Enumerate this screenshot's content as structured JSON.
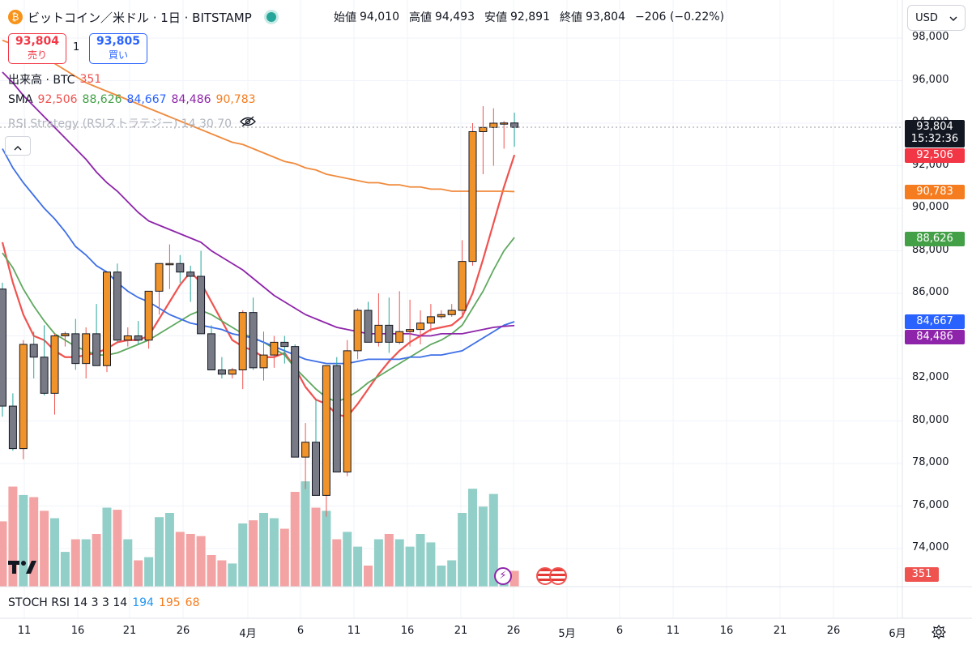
{
  "header": {
    "symbol_title": "ビットコイン／米ドル · 1日 · BITSTAMP",
    "ohlc": {
      "open_label": "始値",
      "open": "94,010",
      "high_label": "高値",
      "high": "94,493",
      "low_label": "安値",
      "low": "92,891",
      "close_label": "終値",
      "close": "93,804",
      "change": "−206 (−0.22%)"
    }
  },
  "trade": {
    "sell_price": "93,804",
    "sell_label": "売り",
    "spread": "1",
    "buy_price": "93,805",
    "buy_label": "買い"
  },
  "indicators": {
    "volume_label": "出来高 · BTC",
    "volume_value": "351",
    "sma_label": "SMA",
    "sma_values": [
      "92,506",
      "88,626",
      "84,667",
      "84,486",
      "90,783"
    ],
    "rsi_label": "RSI Strategy (RSIストラテジー) 14 30 70"
  },
  "currency_button": "USD",
  "price_axis": {
    "ticks": [
      "98,000",
      "96,000",
      "94,000",
      "92,000",
      "90,000",
      "88,000",
      "86,000",
      "84,000",
      "82,000",
      "80,000",
      "78,000",
      "76,000",
      "74,000"
    ],
    "current_price": "93,804",
    "countdown": "15:32:36",
    "badges": [
      {
        "value": "92,506",
        "color": "#f23645"
      },
      {
        "value": "90,783",
        "color": "#f57c1f"
      },
      {
        "value": "88,626",
        "color": "#43a047"
      },
      {
        "value": "84,667",
        "color": "#2962ff"
      },
      {
        "value": "84,486",
        "color": "#8e24aa"
      }
    ],
    "volume_badge": "351"
  },
  "time_axis": {
    "labels": [
      "11",
      "16",
      "21",
      "26",
      "4月",
      "6",
      "11",
      "16",
      "21",
      "26",
      "5月",
      "6",
      "11",
      "16",
      "21",
      "26",
      "6月"
    ]
  },
  "stoch": {
    "label": "STOCH RSI 14 3 3 14",
    "values": [
      "194",
      "195",
      "68"
    ]
  },
  "colors": {
    "up_body": "#f0932b",
    "down_body": "#787b86",
    "sma_colors": [
      "#ef5350",
      "#5fa85f",
      "#3d6fe6",
      "#8e24aa",
      "#f08a3c"
    ],
    "volume_up": "#92cfc8",
    "volume_down": "#f3a3a3"
  },
  "chart_data": {
    "type": "candlestick",
    "x": [
      "3/7",
      "3/8",
      "3/9",
      "3/10",
      "3/11",
      "3/12",
      "3/13",
      "3/14",
      "3/15",
      "3/16",
      "3/17",
      "3/18",
      "3/19",
      "3/20",
      "3/21",
      "3/22",
      "3/23",
      "3/24",
      "3/25",
      "3/26",
      "3/27",
      "3/28",
      "3/29",
      "3/30",
      "3/31",
      "4/1",
      "4/2",
      "4/3",
      "4/4",
      "4/5",
      "4/6",
      "4/7",
      "4/8",
      "4/9",
      "4/10",
      "4/11",
      "4/12",
      "4/13",
      "4/14",
      "4/15",
      "4/16",
      "4/17",
      "4/18",
      "4/19",
      "4/20",
      "4/21",
      "4/22",
      "4/23",
      "4/24",
      "4/25"
    ],
    "ohlc": [
      [
        86200,
        86500,
        80200,
        80700
      ],
      [
        80700,
        81300,
        78600,
        78700
      ],
      [
        78700,
        83800,
        78200,
        83600
      ],
      [
        83600,
        84200,
        82000,
        83000
      ],
      [
        83000,
        84500,
        81200,
        81300
      ],
      [
        81300,
        84100,
        80300,
        84000
      ],
      [
        84000,
        84200,
        83500,
        84100
      ],
      [
        84100,
        84800,
        82400,
        82700
      ],
      [
        82700,
        84400,
        82000,
        84100
      ],
      [
        84100,
        85500,
        82600,
        82600
      ],
      [
        82600,
        87000,
        82300,
        87000
      ],
      [
        87000,
        87400,
        83700,
        83800
      ],
      [
        83800,
        84400,
        83500,
        84000
      ],
      [
        84000,
        84700,
        83600,
        83800
      ],
      [
        83800,
        86000,
        83400,
        86100
      ],
      [
        86100,
        87400,
        85000,
        87400
      ],
      [
        87400,
        88300,
        86200,
        87400
      ],
      [
        87400,
        87800,
        86500,
        87000
      ],
      [
        87000,
        87300,
        85600,
        86800
      ],
      [
        86800,
        88000,
        84100,
        84100
      ],
      [
        84100,
        84500,
        82400,
        82400
      ],
      [
        82400,
        83000,
        82000,
        82200
      ],
      [
        82200,
        82500,
        82000,
        82400
      ],
      [
        82400,
        85200,
        81500,
        85100
      ],
      [
        85100,
        85800,
        82400,
        82500
      ],
      [
        82500,
        84200,
        81900,
        83100
      ],
      [
        83100,
        84000,
        82500,
        83700
      ],
      [
        83700,
        84000,
        82700,
        83500
      ],
      [
        83500,
        83600,
        78300,
        78300
      ],
      [
        78300,
        79900,
        76800,
        79000
      ],
      [
        79000,
        81000,
        76500,
        76500
      ],
      [
        76500,
        82500,
        75500,
        82600
      ],
      [
        82600,
        83000,
        77600,
        77600
      ],
      [
        77600,
        83800,
        77400,
        83300
      ],
      [
        83300,
        85300,
        82900,
        85200
      ],
      [
        85200,
        85600,
        83700,
        83700
      ],
      [
        83700,
        86000,
        83500,
        84500
      ],
      [
        84500,
        85800,
        83200,
        83700
      ],
      [
        83700,
        86100,
        83600,
        84200
      ],
      [
        84200,
        85700,
        83500,
        84300
      ],
      [
        84300,
        85200,
        83600,
        84600
      ],
      [
        84600,
        85500,
        84200,
        84900
      ],
      [
        84900,
        85200,
        84800,
        85000
      ],
      [
        85000,
        85500,
        84900,
        85200
      ],
      [
        85200,
        88500,
        85000,
        87500
      ],
      [
        87500,
        94000,
        87300,
        93600
      ],
      [
        93600,
        94800,
        91600,
        93800
      ],
      [
        93800,
        94700,
        92000,
        94000
      ],
      [
        94000,
        94100,
        92800,
        94010
      ],
      [
        94010,
        94493,
        92891,
        93804
      ]
    ],
    "volume_relative": [
      0.62,
      0.95,
      0.87,
      0.85,
      0.72,
      0.65,
      0.33,
      0.45,
      0.45,
      0.5,
      0.75,
      0.73,
      0.45,
      0.25,
      0.28,
      0.66,
      0.7,
      0.52,
      0.5,
      0.48,
      0.3,
      0.25,
      0.22,
      0.6,
      0.63,
      0.7,
      0.65,
      0.55,
      0.9,
      1.0,
      0.75,
      0.72,
      0.45,
      0.52,
      0.38,
      0.2,
      0.45,
      0.5,
      0.45,
      0.38,
      0.5,
      0.42,
      0.2,
      0.25,
      0.7,
      0.93,
      0.76,
      0.88,
      0.15,
      0.15
    ],
    "sma_series": [
      {
        "period": "fast",
        "values": [
          88400,
          86500,
          85000,
          84000,
          83800,
          83300,
          83000,
          83000,
          83100,
          83200,
          83400,
          83700,
          83800,
          83800,
          84000,
          84800,
          85600,
          86400,
          87000,
          86500,
          85600,
          84700,
          83800,
          83500,
          83300,
          83000,
          83000,
          83200,
          82500,
          81600,
          81000,
          80800,
          80300,
          80200,
          80800,
          81500,
          82200,
          82800,
          83300,
          83700,
          84000,
          84300,
          84400,
          84500,
          84900,
          86000,
          87600,
          89300,
          91000,
          92506
        ]
      },
      {
        "period": "medium",
        "values": [
          87900,
          87200,
          86200,
          85400,
          84700,
          84100,
          83800,
          83500,
          83300,
          83100,
          83100,
          83200,
          83400,
          83600,
          83800,
          84100,
          84400,
          84700,
          85000,
          85200,
          85000,
          84700,
          84400,
          84100,
          83900,
          83700,
          83400,
          83100,
          82500,
          82000,
          81500,
          81100,
          80900,
          81100,
          81400,
          81800,
          82100,
          82400,
          82700,
          83000,
          83300,
          83600,
          83800,
          84100,
          84500,
          85300,
          86100,
          87100,
          88000,
          88626
        ]
      },
      {
        "period": "slow",
        "values": [
          92800,
          91900,
          91200,
          90600,
          90000,
          89500,
          88900,
          88200,
          87800,
          87300,
          87000,
          86500,
          86100,
          85800,
          85600,
          85300,
          85000,
          84800,
          84600,
          84500,
          84400,
          84300,
          84100,
          84000,
          83900,
          83700,
          83500,
          83300,
          83100,
          82900,
          82800,
          82700,
          82700,
          82700,
          82800,
          82900,
          82900,
          82900,
          82900,
          83000,
          83000,
          83100,
          83100,
          83200,
          83300,
          83600,
          83900,
          84200,
          84500,
          84667
        ]
      },
      {
        "period": "slower",
        "values": [
          96400,
          95900,
          95300,
          94800,
          94300,
          93800,
          93300,
          92800,
          92300,
          91700,
          91200,
          90800,
          90300,
          89800,
          89400,
          89200,
          89000,
          88800,
          88600,
          88400,
          88000,
          87700,
          87400,
          87100,
          86700,
          86300,
          85900,
          85600,
          85300,
          85000,
          84800,
          84600,
          84400,
          84300,
          84200,
          84100,
          84100,
          84100,
          84100,
          84100,
          84000,
          84000,
          84100,
          84100,
          84100,
          84200,
          84300,
          84400,
          84450,
          84486
        ]
      },
      {
        "period": "longest",
        "values": [
          97900,
          97700,
          97500,
          97300,
          97100,
          96800,
          96500,
          96200,
          95900,
          95700,
          95500,
          95300,
          95100,
          94900,
          94700,
          94500,
          94300,
          94100,
          93900,
          93700,
          93500,
          93300,
          93100,
          93000,
          92800,
          92600,
          92400,
          92200,
          92100,
          91900,
          91800,
          91600,
          91500,
          91400,
          91300,
          91200,
          91200,
          91100,
          91100,
          91000,
          91000,
          90900,
          90900,
          90800,
          90800,
          90800,
          90800,
          90800,
          90800,
          90783
        ]
      }
    ],
    "ylim": [
      72500,
      98500
    ]
  }
}
